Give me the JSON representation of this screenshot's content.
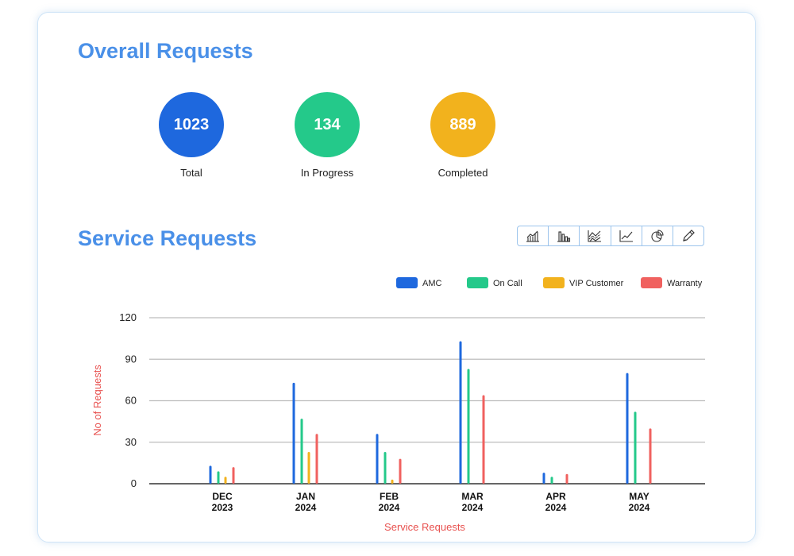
{
  "overall": {
    "title": "Overall Requests",
    "stats": [
      {
        "value": "1023",
        "label": "Total",
        "color": "#1e68de"
      },
      {
        "value": "134",
        "label": "In Progress",
        "color": "#24c98a"
      },
      {
        "value": "889",
        "label": "Completed",
        "color": "#f2b21d"
      }
    ]
  },
  "service": {
    "title": "Service Requests",
    "toolbar": [
      "area-chart-icon",
      "bar-chart-icon",
      "stacked-chart-icon",
      "line-chart-icon",
      "pie-chart-icon",
      "pencil-icon"
    ]
  },
  "chart_data": {
    "type": "bar",
    "categories": [
      "DEC\n2023",
      "JAN\n2024",
      "FEB\n2024",
      "MAR\n2024",
      "APR\n2024",
      "MAY\n2024"
    ],
    "series": [
      {
        "name": "AMC",
        "color": "#1e68de",
        "values": [
          13,
          73,
          36,
          103,
          8,
          80
        ]
      },
      {
        "name": "On Call",
        "color": "#24c98a",
        "values": [
          9,
          47,
          23,
          83,
          5,
          52
        ]
      },
      {
        "name": "VIP Customer",
        "color": "#f2b21d",
        "values": [
          5,
          23,
          3,
          0,
          0,
          0
        ]
      },
      {
        "name": "Warranty",
        "color": "#f0615f",
        "values": [
          12,
          36,
          18,
          64,
          7,
          40
        ]
      }
    ],
    "xlabel": "Service Requests",
    "ylabel": "No of Requests",
    "ylim": [
      0,
      120
    ],
    "yticks": [
      0,
      30,
      60,
      90,
      120
    ],
    "grid": true,
    "legend": "top-right"
  }
}
